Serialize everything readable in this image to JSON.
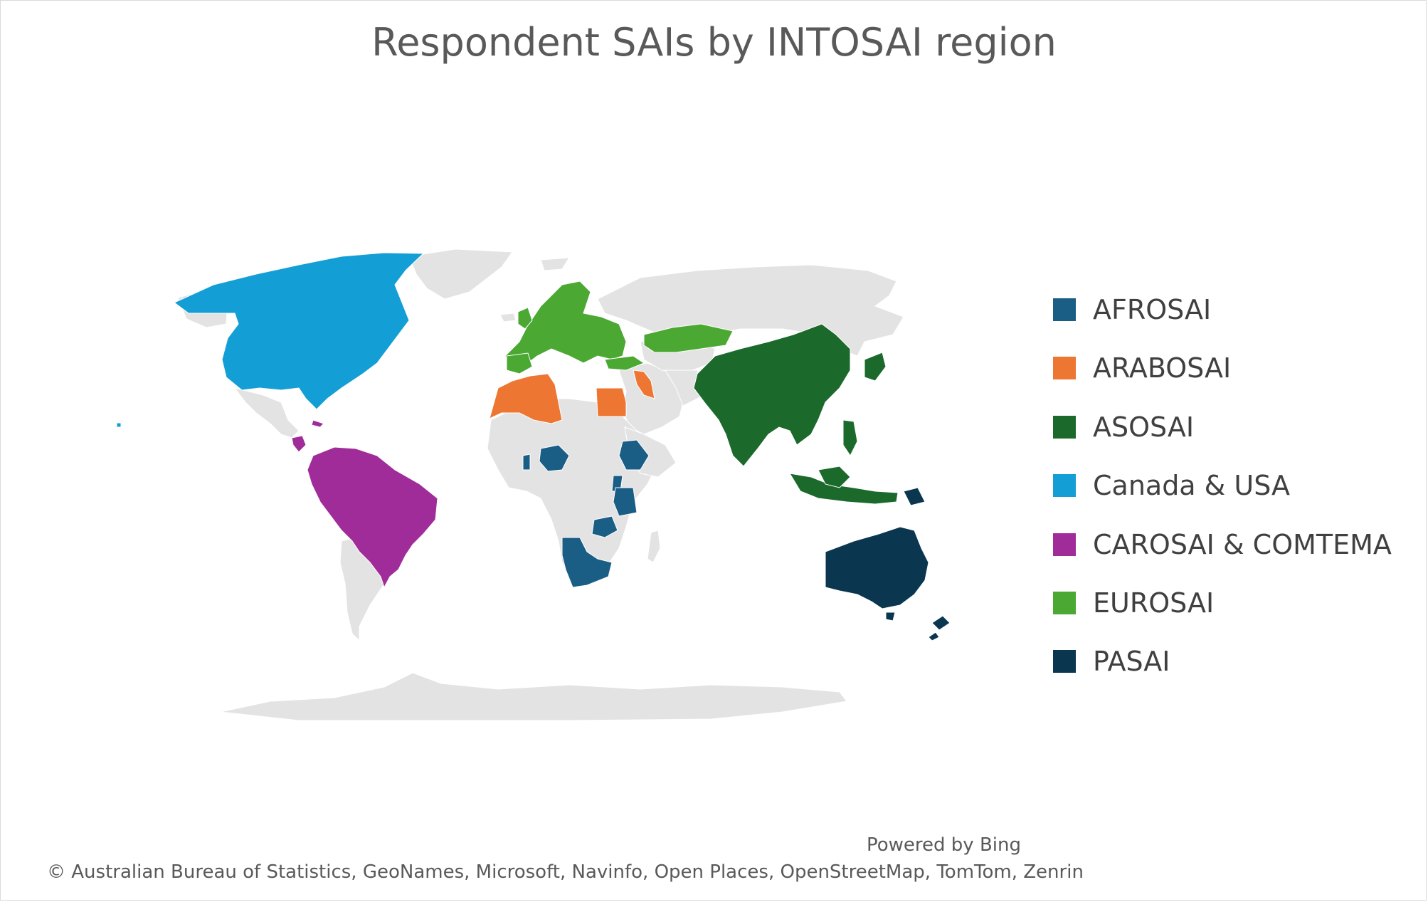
{
  "title": "Respondent SAIs by INTOSAI region",
  "legend": [
    {
      "label": "AFROSAI",
      "color": "#1a5e86"
    },
    {
      "label": "ARABOSAI",
      "color": "#ed7632"
    },
    {
      "label": "ASOSAI",
      "color": "#1b6a2c"
    },
    {
      "label": "Canada & USA",
      "color": "#139fd6"
    },
    {
      "label": "CAROSAI & COMTEMA",
      "color": "#a02c99"
    },
    {
      "label": "EUROSAI",
      "color": "#4ba832"
    },
    {
      "label": "PASAI",
      "color": "#0b3650"
    }
  ],
  "no_data_color": "#e3e3e3",
  "attribution": {
    "powered_by": "Powered by Bing",
    "copyright": "© Australian Bureau of Statistics, GeoNames, Microsoft, Navinfo, Open Places, OpenStreetMap, TomTom, Zenrin"
  }
}
